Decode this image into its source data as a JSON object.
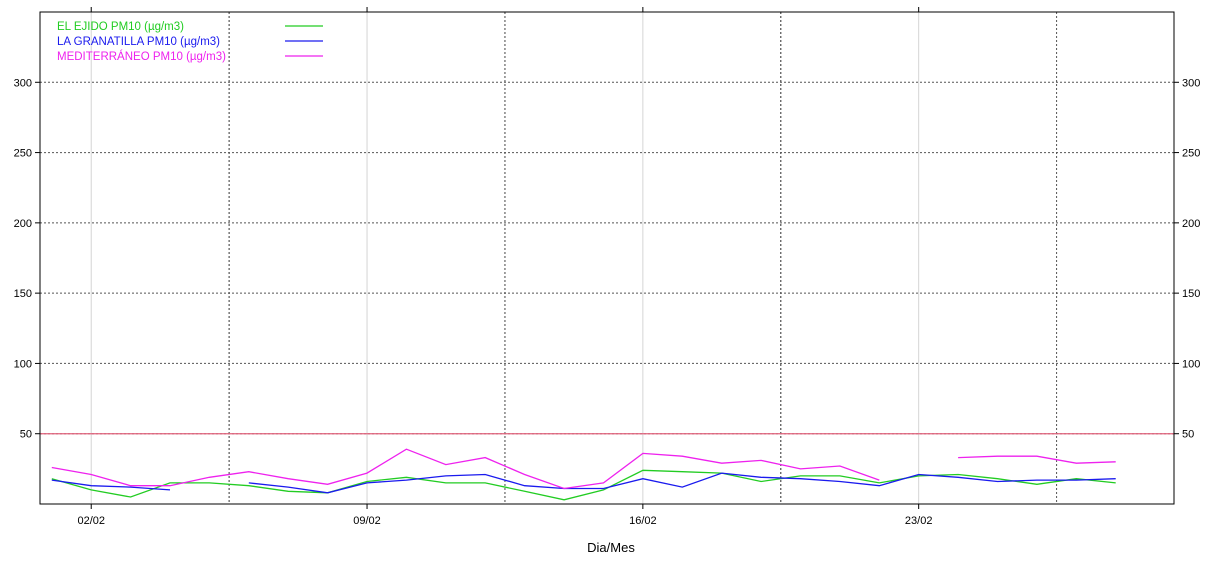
{
  "chart_data": {
    "type": "line",
    "xlabel": "Dia/Mes",
    "ylabel": "",
    "ylim": [
      0,
      350
    ],
    "yticks": [
      50,
      100,
      150,
      200,
      250,
      300
    ],
    "x_start": "2024-02-01",
    "x_end": "2024-02-29",
    "x_tick_dates": [
      "2024-02-02",
      "2024-02-09",
      "2024-02-16",
      "2024-02-23"
    ],
    "x_tick_labels": [
      "02/02",
      "09/02",
      "16/02",
      "23/02"
    ],
    "grid": true,
    "legend_position": "top-left",
    "threshold": {
      "value": 50,
      "color": "#e0607a"
    },
    "series": [
      {
        "name": "EL EJIDO PM10 (µg/m3)",
        "color": "#22cc22",
        "x": [
          "2024-02-01",
          "2024-02-02",
          "2024-02-03",
          "2024-02-04",
          "2024-02-05",
          "2024-02-06",
          "2024-02-07",
          "2024-02-08",
          "2024-02-09",
          "2024-02-10",
          "2024-02-11",
          "2024-02-12",
          "2024-02-13",
          "2024-02-14",
          "2024-02-15",
          "2024-02-16",
          "2024-02-17",
          "2024-02-18",
          "2024-02-19",
          "2024-02-20",
          "2024-02-21",
          "2024-02-22",
          "2024-02-23",
          "2024-02-24",
          "2024-02-25",
          "2024-02-26",
          "2024-02-27",
          "2024-02-28"
        ],
        "values": [
          18,
          10,
          5,
          15,
          15,
          13,
          9,
          8,
          16,
          19,
          15,
          15,
          9,
          3,
          10,
          24,
          23,
          22,
          16,
          20,
          20,
          15,
          20,
          21,
          18,
          14,
          18,
          15
        ]
      },
      {
        "name": "LA GRANATILLA PM10 (µg/m3)",
        "color": "#1a1aee",
        "x": [
          "2024-02-01",
          "2024-02-02",
          "2024-02-03",
          "2024-02-04",
          null,
          "2024-02-06",
          "2024-02-07",
          "2024-02-08",
          "2024-02-09",
          "2024-02-10",
          "2024-02-11",
          "2024-02-12",
          "2024-02-13",
          "2024-02-14",
          "2024-02-15",
          "2024-02-16",
          "2024-02-17",
          "2024-02-18",
          "2024-02-19",
          "2024-02-20",
          "2024-02-21",
          "2024-02-22",
          "2024-02-23",
          "2024-02-24",
          "2024-02-25",
          "2024-02-26",
          "2024-02-27",
          "2024-02-28"
        ],
        "values": [
          17,
          13,
          12,
          10,
          null,
          15,
          12,
          8,
          15,
          17,
          20,
          21,
          13,
          11,
          11,
          18,
          12,
          22,
          19,
          18,
          16,
          13,
          21,
          19,
          16,
          17,
          17,
          18
        ]
      },
      {
        "name": "MEDITERRÁNEO PM10 (µg/m3)",
        "color": "#ee22ee",
        "x": [
          "2024-02-01",
          "2024-02-02",
          "2024-02-03",
          "2024-02-04",
          "2024-02-05",
          "2024-02-06",
          "2024-02-07",
          "2024-02-08",
          "2024-02-09",
          "2024-02-10",
          "2024-02-11",
          "2024-02-12",
          "2024-02-13",
          "2024-02-14",
          "2024-02-15",
          "2024-02-16",
          "2024-02-17",
          "2024-02-18",
          "2024-02-19",
          "2024-02-20",
          "2024-02-21",
          "2024-02-22",
          null,
          "2024-02-24",
          "2024-02-25",
          "2024-02-26",
          "2024-02-27",
          "2024-02-28"
        ],
        "values": [
          26,
          21,
          13,
          13,
          19,
          23,
          18,
          14,
          22,
          39,
          28,
          33,
          21,
          11,
          15,
          36,
          34,
          29,
          31,
          25,
          27,
          17,
          null,
          33,
          34,
          34,
          29,
          30
        ]
      }
    ]
  }
}
